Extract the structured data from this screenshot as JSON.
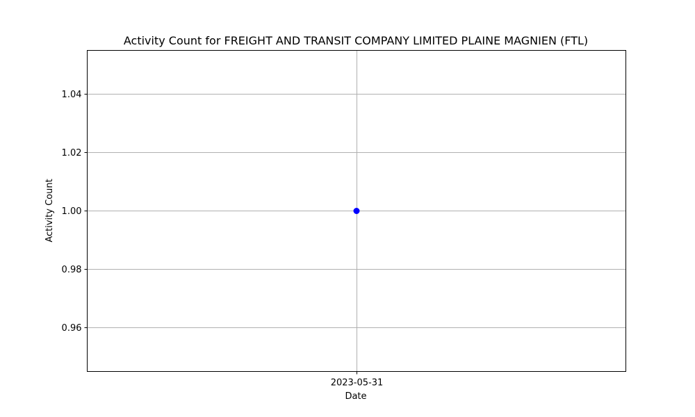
{
  "chart_data": {
    "type": "line",
    "title": "Activity Count for FREIGHT AND TRANSIT COMPANY LIMITED PLAINE MAGNIEN (FTL)",
    "xlabel": "Date",
    "ylabel": "Activity Count",
    "x": [
      "2023-05-31"
    ],
    "series": [
      {
        "values": [
          1.0
        ],
        "color": "#0000ff",
        "marker": "circle"
      }
    ],
    "ylim": [
      0.945,
      1.055
    ],
    "yticks": [
      0.96,
      0.98,
      1.0,
      1.02,
      1.04
    ],
    "ytick_labels": [
      "0.96",
      "0.98",
      "1.00",
      "1.02",
      "1.04"
    ],
    "xtick_labels": [
      "2023-05-31"
    ],
    "grid": true,
    "legend": false
  }
}
